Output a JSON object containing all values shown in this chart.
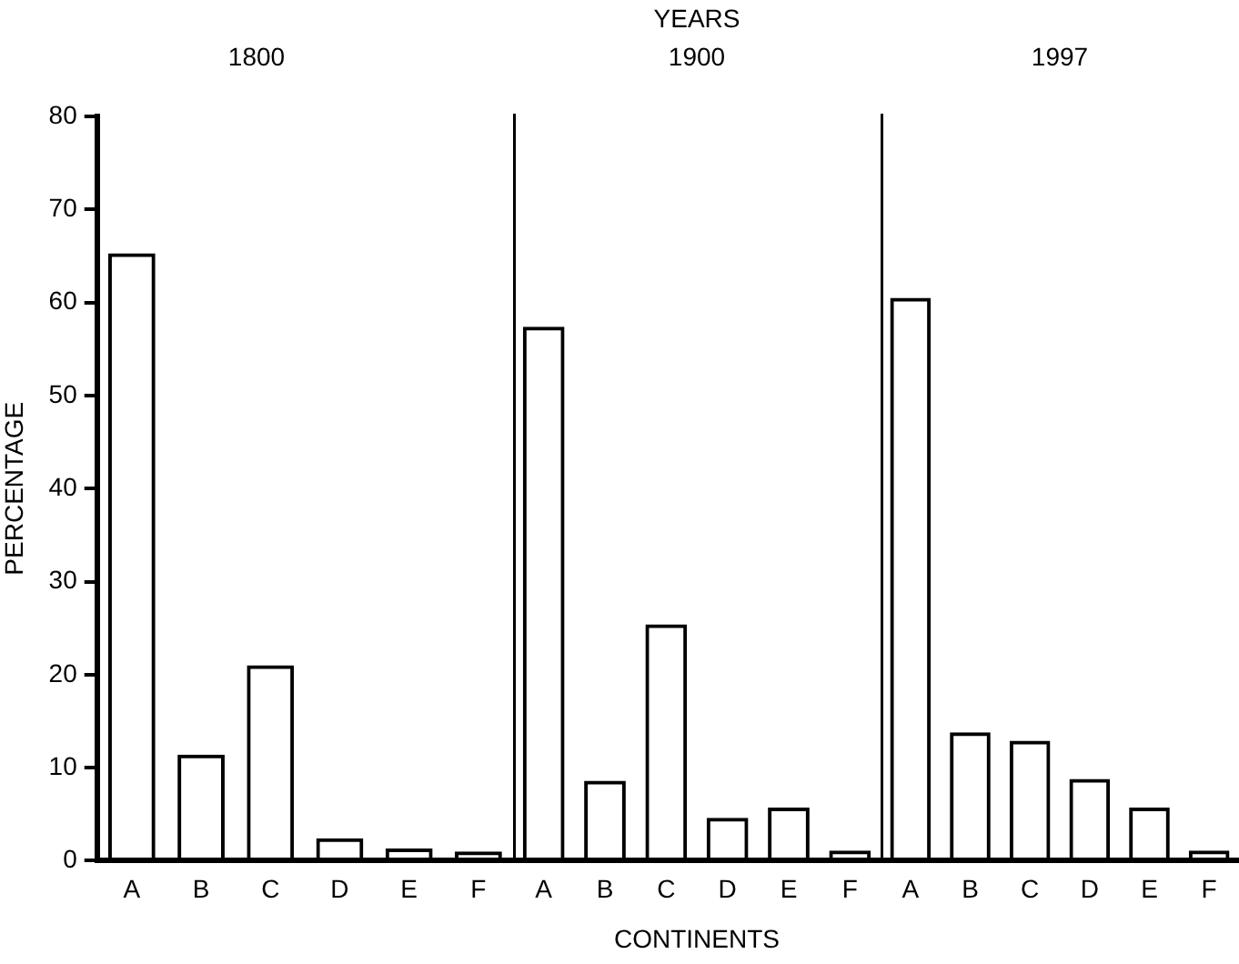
{
  "chart_data": [
    {
      "type": "bar",
      "subtitle": "1800",
      "ylabel": "PERCENTAGE",
      "categories": [
        "A",
        "B",
        "C",
        "D",
        "E",
        "F"
      ],
      "values": [
        65.3,
        11.4,
        21.0,
        2.4,
        1.3,
        1.0
      ],
      "color": "#000000",
      "ylim": [
        0,
        80
      ],
      "yticks": [
        0,
        10,
        20,
        30,
        40,
        50,
        60,
        70,
        80
      ]
    },
    {
      "type": "bar",
      "title": "YEARS",
      "subtitle": "1900",
      "xlabel": "CONTINENTS",
      "categories": [
        "A",
        "B",
        "C",
        "D",
        "E",
        "F"
      ],
      "values": [
        57.4,
        8.6,
        25.4,
        4.6,
        5.7,
        1.1
      ],
      "color": "#000000",
      "ylim": [
        0,
        80
      ],
      "tick_labels": "x"
    },
    {
      "type": "bar",
      "subtitle": "1997",
      "categories": [
        "A",
        "B",
        "C",
        "D",
        "E",
        "F"
      ],
      "values": [
        60.5,
        13.8,
        12.9,
        8.8,
        5.7,
        1.1
      ],
      "color": "#000000",
      "ylim": [
        0,
        80
      ],
      "tick_labels": "x"
    }
  ]
}
